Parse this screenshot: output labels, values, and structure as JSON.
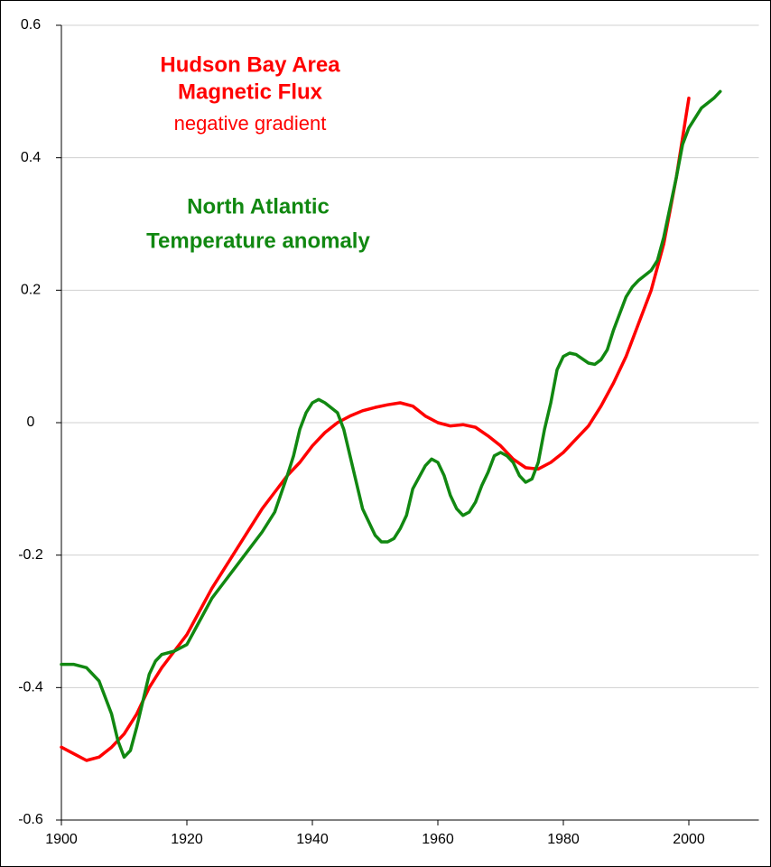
{
  "chart_data": {
    "type": "line",
    "xlim": [
      1900,
      2010
    ],
    "xticks": [
      1900,
      1920,
      1940,
      1960,
      1980,
      2000
    ],
    "ylim": [
      -0.6,
      0.6
    ],
    "yticks": [
      0.6,
      0.4,
      0.2,
      0,
      -0.2,
      -0.4,
      -0.6
    ],
    "grid": true,
    "series": [
      {
        "name_lines": [
          "Hudson Bay Area",
          "Magnetic Flux"
        ],
        "subtitle": "negative gradient",
        "color": "#ff0000",
        "x": [
          1900,
          1902,
          1904,
          1906,
          1908,
          1910,
          1912,
          1914,
          1916,
          1918,
          1920,
          1922,
          1924,
          1926,
          1928,
          1930,
          1932,
          1934,
          1936,
          1938,
          1940,
          1942,
          1944,
          1946,
          1948,
          1950,
          1952,
          1954,
          1956,
          1958,
          1960,
          1962,
          1964,
          1966,
          1968,
          1970,
          1972,
          1974,
          1976,
          1978,
          1980,
          1982,
          1984,
          1986,
          1988,
          1990,
          1992,
          1994,
          1996,
          1998,
          2000
        ],
        "values": [
          -0.49,
          -0.5,
          -0.51,
          -0.505,
          -0.49,
          -0.47,
          -0.44,
          -0.4,
          -0.37,
          -0.345,
          -0.32,
          -0.285,
          -0.25,
          -0.22,
          -0.19,
          -0.16,
          -0.13,
          -0.105,
          -0.08,
          -0.06,
          -0.035,
          -0.015,
          0,
          0.01,
          0.018,
          0.023,
          0.027,
          0.03,
          0.025,
          0.01,
          0,
          -0.005,
          -0.003,
          -0.007,
          -0.02,
          -0.035,
          -0.055,
          -0.068,
          -0.07,
          -0.06,
          -0.045,
          -0.025,
          -0.005,
          0.025,
          0.06,
          0.1,
          0.15,
          0.2,
          0.27,
          0.37,
          0.49
        ]
      },
      {
        "name_lines": [
          "North Atlantic",
          "Temperature anomaly"
        ],
        "color": "#118811",
        "x": [
          1900,
          1902,
          1904,
          1906,
          1908,
          1909,
          1910,
          1911,
          1912,
          1913,
          1914,
          1915,
          1916,
          1918,
          1920,
          1922,
          1924,
          1926,
          1928,
          1930,
          1932,
          1934,
          1936,
          1937,
          1938,
          1939,
          1940,
          1941,
          1942,
          1944,
          1945,
          1946,
          1947,
          1948,
          1950,
          1951,
          1952,
          1953,
          1954,
          1955,
          1956,
          1958,
          1959,
          1960,
          1961,
          1962,
          1963,
          1964,
          1965,
          1966,
          1967,
          1968,
          1969,
          1970,
          1971,
          1972,
          1973,
          1974,
          1975,
          1976,
          1977,
          1978,
          1979,
          1980,
          1981,
          1982,
          1984,
          1985,
          1986,
          1987,
          1988,
          1990,
          1991,
          1992,
          1994,
          1995,
          1996,
          1998,
          1999,
          2000,
          2001,
          2002,
          2004,
          2005
        ],
        "values": [
          -0.365,
          -0.365,
          -0.37,
          -0.39,
          -0.44,
          -0.48,
          -0.505,
          -0.495,
          -0.46,
          -0.42,
          -0.38,
          -0.36,
          -0.35,
          -0.345,
          -0.335,
          -0.3,
          -0.265,
          -0.24,
          -0.215,
          -0.19,
          -0.165,
          -0.135,
          -0.08,
          -0.05,
          -0.01,
          0.015,
          0.03,
          0.035,
          0.03,
          0.015,
          -0.01,
          -0.05,
          -0.09,
          -0.13,
          -0.17,
          -0.18,
          -0.18,
          -0.175,
          -0.16,
          -0.14,
          -0.1,
          -0.065,
          -0.055,
          -0.06,
          -0.08,
          -0.11,
          -0.13,
          -0.14,
          -0.135,
          -0.12,
          -0.095,
          -0.075,
          -0.05,
          -0.045,
          -0.05,
          -0.06,
          -0.08,
          -0.09,
          -0.085,
          -0.06,
          -0.01,
          0.03,
          0.08,
          0.1,
          0.105,
          0.103,
          0.09,
          0.088,
          0.095,
          0.11,
          0.14,
          0.19,
          0.205,
          0.215,
          0.23,
          0.245,
          0.28,
          0.37,
          0.42,
          0.445,
          0.46,
          0.475,
          0.49,
          0.5
        ]
      }
    ]
  }
}
